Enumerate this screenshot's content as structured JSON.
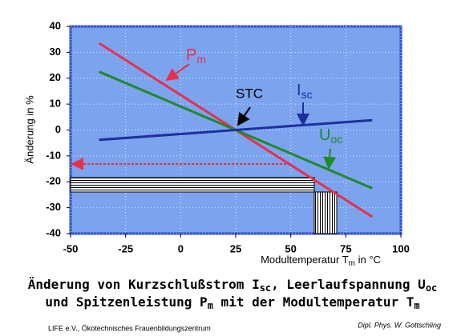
{
  "chart_data": {
    "type": "line",
    "y_label": "Änderung in %",
    "x_label": [
      "Modultemperatur T",
      "m",
      " in °C"
    ],
    "title_lines": [
      [
        "Änderung von Kurzschlußstrom I",
        "sc",
        ", Leerlaufspannung U",
        "oc"
      ],
      [
        "und Spitzenleistung P",
        "m",
        " mit der Modultemperatur T",
        "m"
      ]
    ],
    "xlim": [
      -50,
      100
    ],
    "xticks": [
      -50,
      -25,
      0,
      25,
      50,
      75,
      100
    ],
    "ylim": [
      -40,
      40
    ],
    "yticks": [
      -40,
      -30,
      -20,
      -10,
      0,
      10,
      20,
      30,
      40
    ],
    "grid": true,
    "series": [
      {
        "color": "#e8304a",
        "x": [
          -37,
          87
        ],
        "values": [
          33.5,
          -33.5
        ]
      },
      {
        "color": "#1f8a2a",
        "x": [
          -37,
          87
        ],
        "values": [
          22.5,
          -22.5
        ]
      },
      {
        "color": "#1f2fa0",
        "x": [
          -37,
          87
        ],
        "values": [
          -3.8,
          3.8
        ]
      }
    ],
    "annotations": [
      {
        "text": "P",
        "sub": "m"
      },
      {
        "text": "STC"
      },
      {
        "text": "I",
        "sub": "sc"
      },
      {
        "text": "U",
        "sub": "oc"
      }
    ],
    "footer_left": "LIFE e.V., Ökotechnisches Frauenbildungszentrum",
    "footer_right": "Dipl. Phys. W. Gottschling"
  }
}
